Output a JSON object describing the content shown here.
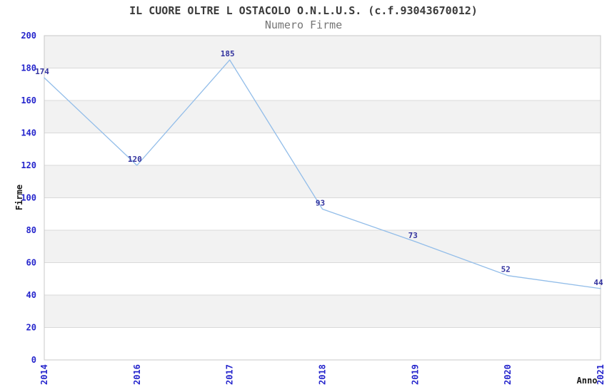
{
  "header": {
    "title": "IL CUORE OLTRE L OSTACOLO O.N.L.U.S. (c.f.93043670012)",
    "subtitle": "Numero Firme"
  },
  "chart_data": {
    "type": "line",
    "title": "IL CUORE OLTRE L OSTACOLO O.N.L.U.S. (c.f.93043670012)",
    "subtitle": "Numero Firme",
    "categories": [
      "2014",
      "2016",
      "2017",
      "2018",
      "2019",
      "2020",
      "2021"
    ],
    "series": [
      {
        "name": "Numero Firme",
        "values": [
          174,
          120,
          185,
          93,
          73,
          52,
          44
        ]
      }
    ],
    "point_labels": [
      "174",
      "120",
      "185",
      "93",
      "73",
      "52",
      "44"
    ],
    "xlabel": "Anno",
    "ylabel": "Firme",
    "ylim": [
      0,
      200
    ],
    "ytick_step": 20,
    "yticks": [
      0,
      20,
      40,
      60,
      80,
      100,
      120,
      140,
      160,
      180,
      200
    ],
    "grid": true,
    "legend_position": "none",
    "banded_background": true,
    "colors": {
      "line": "#92bde9",
      "point_label": "#32329e",
      "tick_label": "#2525cc",
      "band": "#f2f2f2",
      "gridline": "#d9d9d9",
      "border": "#c8c8c8",
      "axis_label": "#1a1a1a"
    }
  }
}
